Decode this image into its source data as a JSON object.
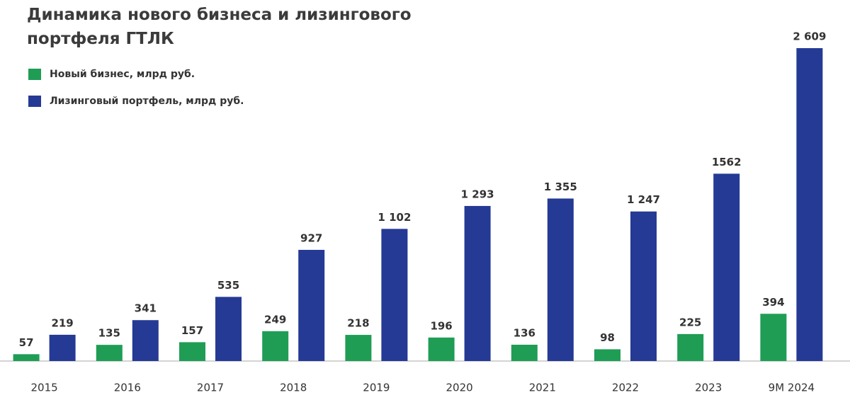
{
  "chart_data": {
    "type": "bar",
    "title": "Динамика нового бизнеса и лизингового портфеля ГТЛК",
    "categories": [
      "2015",
      "2016",
      "2017",
      "2018",
      "2019",
      "2020",
      "2021",
      "2022",
      "2023",
      "9M 2024"
    ],
    "series": [
      {
        "name": "Новый бизнес, млрд руб.",
        "color": "#1f9d55",
        "values": [
          57,
          135,
          157,
          249,
          218,
          196,
          136,
          98,
          225,
          394
        ]
      },
      {
        "name": "Лизинговый портфель, млрд руб.",
        "color": "#253a94",
        "values": [
          219,
          341,
          535,
          927,
          1102,
          1293,
          1355,
          1247,
          1562,
          2609
        ],
        "value_labels": [
          "219",
          "341",
          "535",
          "927",
          "1 102",
          "1 293",
          "1 355",
          "1 247",
          "1562",
          "2 609"
        ]
      }
    ],
    "legend": "top-left"
  }
}
